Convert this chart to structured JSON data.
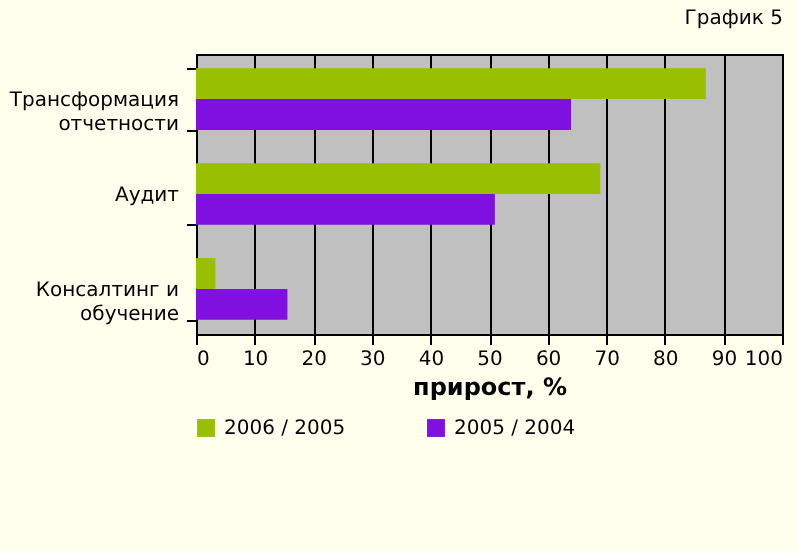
{
  "chart_data": {
    "type": "bar",
    "orientation": "horizontal",
    "title": "График 5",
    "xlabel": "прирост, %",
    "categories": [
      "Трансформация отчетности",
      "Аудит",
      "Консалтинг и обучение"
    ],
    "series": [
      {
        "name": "2006 / 2005",
        "color": "#99c000",
        "values": [
          87,
          69,
          3.3
        ]
      },
      {
        "name": "2005 / 2004",
        "color": "#8010e0",
        "values": [
          64,
          51,
          15.6
        ]
      }
    ],
    "xlim": [
      0,
      100
    ],
    "xticks": [
      0,
      10,
      20,
      30,
      40,
      50,
      60,
      70,
      80,
      90,
      100
    ],
    "grid": "x",
    "legend": "bottom"
  }
}
